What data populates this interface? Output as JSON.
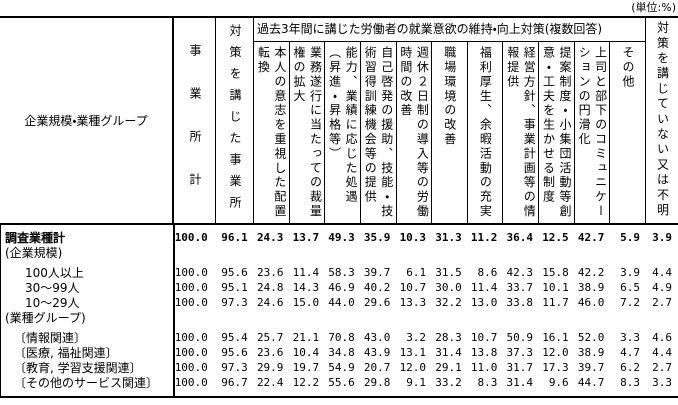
{
  "unit_label": "(単位:%)",
  "table": {
    "stub_header": "企業規模・業種グループ",
    "col_establishments_total": "事業所計",
    "col_took_measures": "対策を講じた事業所",
    "group_header": "過去3年間に講じた労働者の就業意欲の維持・向上対策(複数回答)",
    "sub_headers": [
      "本人の意志を重視した配置\n転換",
      "業務遂行に当たっての裁量\n権の拡大",
      "能力、業績に応じた処遇\n（昇進・昇格等）",
      "自己啓発の援助、技能・技\n術習得訓練機会等の提供",
      "週休２日制の導入等の労働\n時間の改善",
      "職場環境の改善",
      "福利厚生、余暇活動の充実",
      "経営方針、事業計画等の情\n報提供",
      "提案制度・小集団活動等創\n意・工夫を生かせる制度",
      "上司と部下のコミュニケー\nションの円滑化",
      "その他"
    ],
    "col_no_measures": "対策を講じていない又は不明",
    "rows": [
      {
        "label": "調査業種計",
        "bold": true,
        "indent": 0,
        "gap": false,
        "values": [
          "100.0",
          "96.1",
          "24.3",
          "13.7",
          "49.3",
          "35.9",
          "10.3",
          "31.3",
          "11.2",
          "36.4",
          "12.5",
          "42.7",
          "5.9",
          "3.9"
        ]
      },
      {
        "label": "(企業規模)",
        "bold": false,
        "indent": 0,
        "gap": false,
        "values": []
      },
      {
        "label": "100人以上",
        "bold": false,
        "indent": 1,
        "gap": true,
        "values": [
          "100.0",
          "95.6",
          "23.6",
          "11.4",
          "58.3",
          "39.7",
          "6.1",
          "31.5",
          "8.6",
          "42.3",
          "15.8",
          "42.2",
          "3.9",
          "4.4"
        ]
      },
      {
        "label": "30～99人",
        "bold": false,
        "indent": 1,
        "gap": false,
        "values": [
          "100.0",
          "95.1",
          "24.8",
          "14.3",
          "46.9",
          "40.2",
          "10.7",
          "30.0",
          "11.4",
          "33.7",
          "10.1",
          "38.9",
          "6.5",
          "4.9"
        ]
      },
      {
        "label": "10～29人",
        "bold": false,
        "indent": 1,
        "gap": false,
        "values": [
          "100.0",
          "97.3",
          "24.6",
          "15.0",
          "44.0",
          "29.6",
          "13.3",
          "32.2",
          "13.0",
          "33.8",
          "11.7",
          "46.0",
          "7.2",
          "2.7"
        ]
      },
      {
        "label": "(業種グループ)",
        "bold": false,
        "indent": 0,
        "gap": false,
        "values": []
      },
      {
        "label": "〔情報関連〕",
        "bold": false,
        "indent": 2,
        "gap": true,
        "values": [
          "100.0",
          "95.4",
          "25.7",
          "21.1",
          "70.8",
          "43.0",
          "3.2",
          "28.3",
          "10.7",
          "50.9",
          "16.1",
          "52.0",
          "3.3",
          "4.6"
        ]
      },
      {
        "label": "〔医療, 福祉関連〕",
        "bold": false,
        "indent": 2,
        "gap": false,
        "values": [
          "100.0",
          "95.6",
          "23.6",
          "10.4",
          "34.8",
          "43.9",
          "13.1",
          "31.4",
          "13.8",
          "37.3",
          "12.0",
          "38.9",
          "4.7",
          "4.4"
        ]
      },
      {
        "label": "〔教育, 学習支援関連〕",
        "bold": false,
        "indent": 2,
        "gap": false,
        "values": [
          "100.0",
          "97.3",
          "29.9",
          "19.7",
          "54.9",
          "20.7",
          "12.0",
          "29.1",
          "11.0",
          "31.7",
          "17.3",
          "39.7",
          "6.2",
          "2.7"
        ]
      },
      {
        "label": "〔その他のサービス関連〕",
        "bold": false,
        "indent": 2,
        "gap": false,
        "values": [
          "100.0",
          "96.7",
          "22.4",
          "12.2",
          "55.6",
          "29.8",
          "9.1",
          "33.2",
          "8.3",
          "31.4",
          "9.6",
          "44.7",
          "8.3",
          "3.3"
        ]
      }
    ]
  }
}
